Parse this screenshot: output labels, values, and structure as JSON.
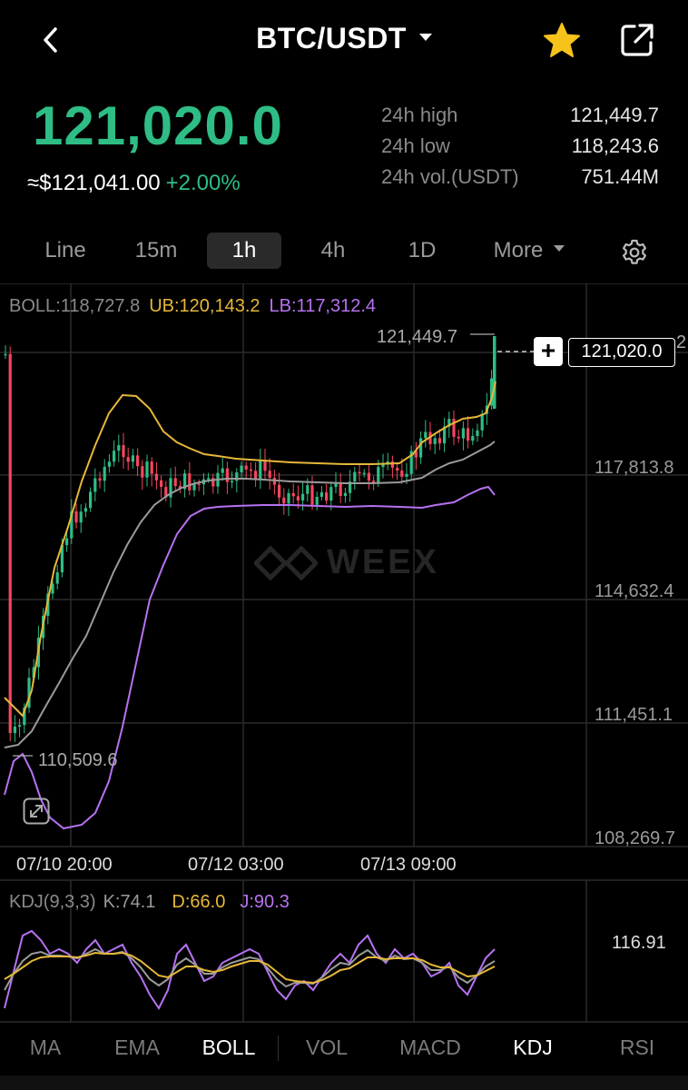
{
  "header": {
    "title": "BTC/USDT"
  },
  "price": {
    "last": "121,020.0",
    "usd": "≈$121,041.00",
    "change_pct": "+2.00%"
  },
  "stats": [
    {
      "label": "24h high",
      "value": "121,449.7"
    },
    {
      "label": "24h low",
      "value": "118,243.6"
    },
    {
      "label": "24h vol.(USDT)",
      "value": "751.44M"
    }
  ],
  "tabs": [
    {
      "label": "Line"
    },
    {
      "label": "15m"
    },
    {
      "label": "1h"
    },
    {
      "label": "4h"
    },
    {
      "label": "1D"
    },
    {
      "label": "More"
    }
  ],
  "active_tab": "1h",
  "boll": {
    "boll": "BOLL:118,727.8",
    "ub": "UB:120,143.2",
    "lb": "LB:117,312.4"
  },
  "chart": {
    "y_ticks": [
      "117,813.8",
      "114,632.4",
      "111,451.1",
      "108,269.7"
    ],
    "x_ticks": [
      "07/10 20:00",
      "07/12 03:00",
      "07/13 09:00"
    ],
    "high_marker": "121,449.7",
    "low_marker": "110,509.6",
    "current_price_tag": "121,020.0",
    "current_price_edge": "2",
    "watermark": "WEEX"
  },
  "kdj": {
    "name": "KDJ(9,3,3)",
    "k": "K:74.1",
    "d": "D:66.0",
    "j": "J:90.3",
    "axis_value": "116.91"
  },
  "indicators": [
    {
      "label": "MA"
    },
    {
      "label": "EMA"
    },
    {
      "label": "BOLL"
    },
    {
      "label": "VOL"
    },
    {
      "label": "MACD"
    },
    {
      "label": "KDJ"
    },
    {
      "label": "RSI"
    }
  ],
  "colors": {
    "up": "#2ebd85",
    "down": "#f6465d",
    "boll_mid": "#9a9a9a",
    "boll_ub": "#e6b73a",
    "boll_lb": "#b672f0",
    "star": "#f7c31a"
  },
  "icons": {
    "back": "back-arrow-icon",
    "star": "star-icon",
    "share": "share-icon",
    "settings": "gear-icon",
    "expand": "expand-icon"
  }
}
